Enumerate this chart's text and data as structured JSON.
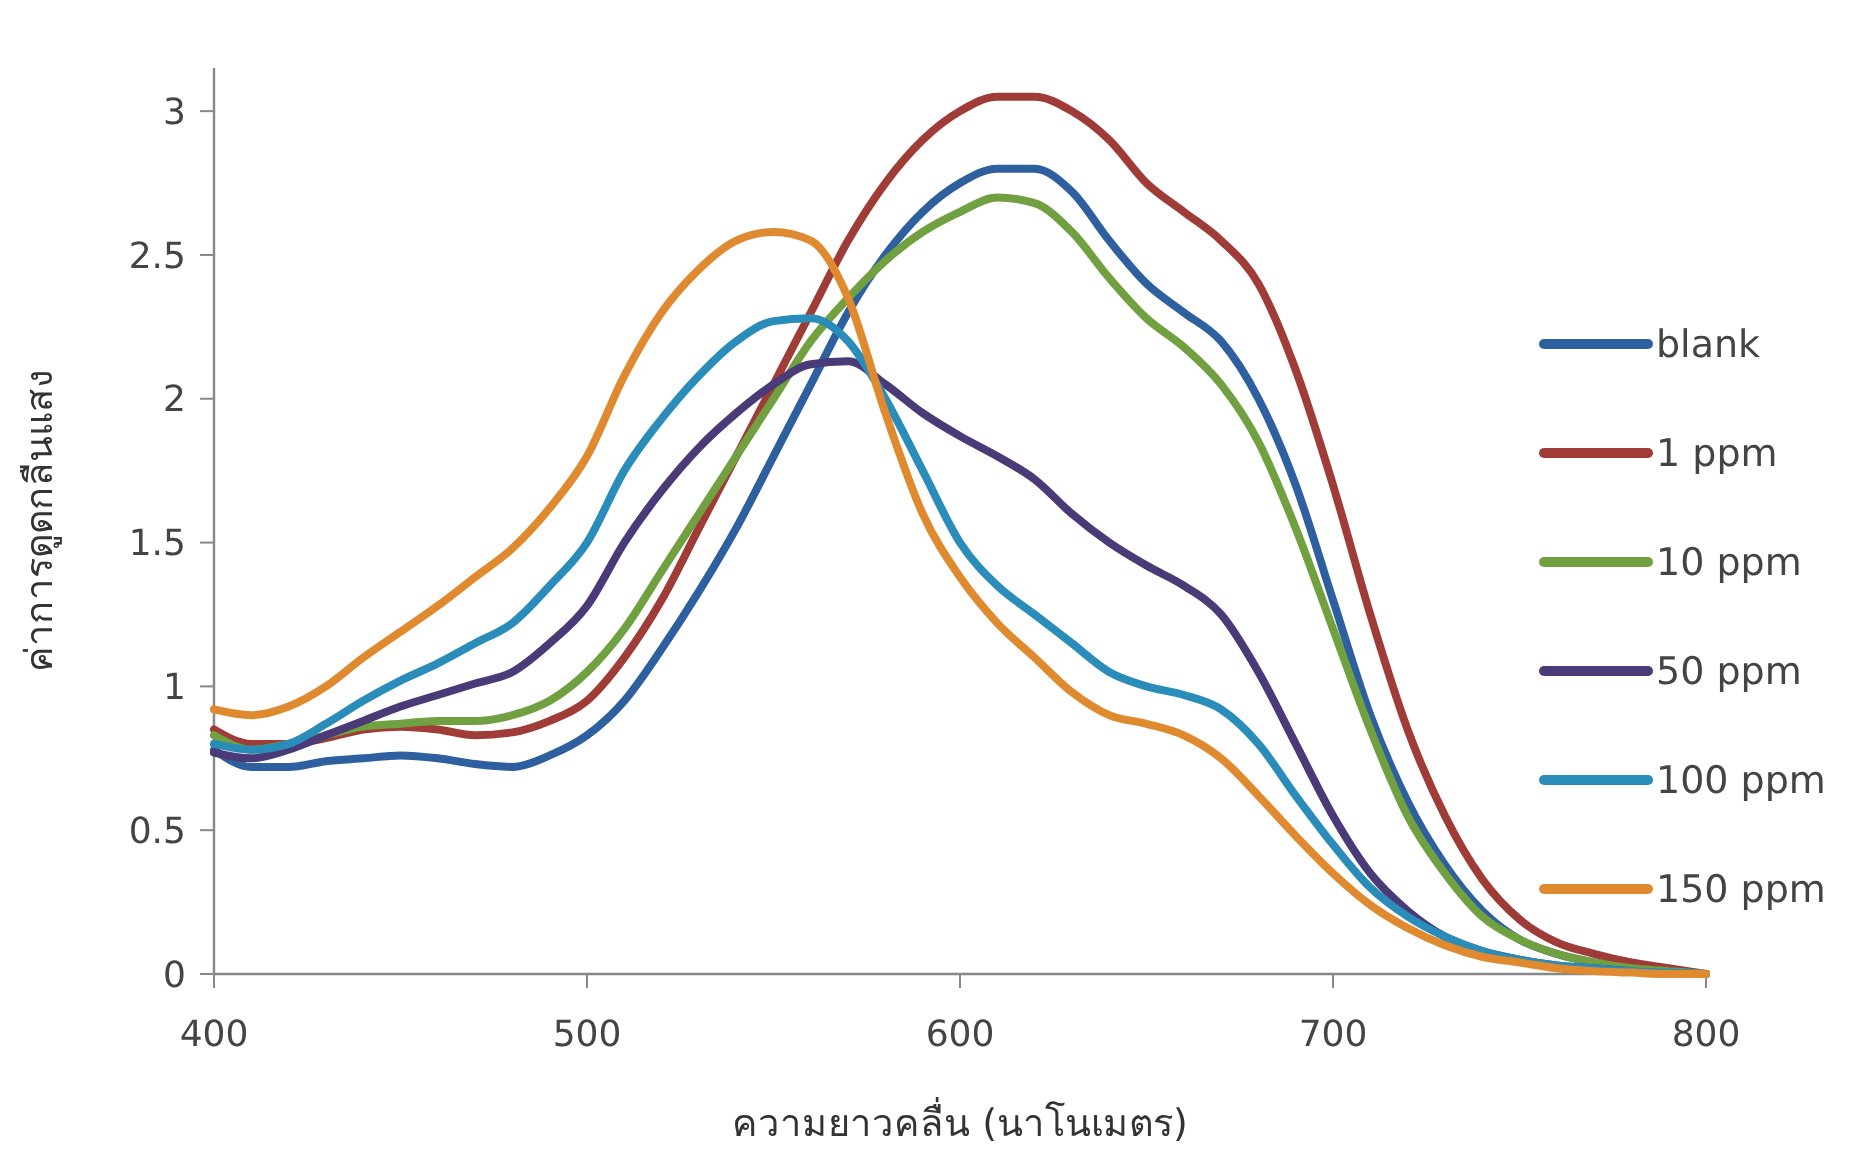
{
  "chart_data": {
    "type": "line",
    "xlabel": "ความยาวคลื่น (นาโนเมตร)",
    "ylabel": "ค่าการดูดกลืนแสง",
    "x": [
      400,
      410,
      420,
      430,
      440,
      450,
      460,
      470,
      480,
      490,
      500,
      510,
      520,
      530,
      540,
      550,
      560,
      570,
      580,
      590,
      600,
      610,
      620,
      630,
      640,
      650,
      660,
      670,
      680,
      690,
      700,
      710,
      720,
      730,
      740,
      750,
      760,
      770,
      780,
      790,
      800
    ],
    "series": [
      {
        "name": "blank",
        "color": "#2e5f9e",
        "values": [
          0.78,
          0.72,
          0.72,
          0.74,
          0.75,
          0.76,
          0.75,
          0.73,
          0.72,
          0.76,
          0.83,
          0.95,
          1.13,
          1.33,
          1.55,
          1.8,
          2.05,
          2.3,
          2.5,
          2.65,
          2.75,
          2.8,
          2.8,
          2.72,
          2.55,
          2.4,
          2.3,
          2.2,
          2.0,
          1.7,
          1.3,
          0.9,
          0.6,
          0.38,
          0.22,
          0.12,
          0.07,
          0.04,
          0.02,
          0.01,
          0
        ]
      },
      {
        "name": "1 ppm",
        "color": "#a03c37",
        "values": [
          0.85,
          0.8,
          0.8,
          0.82,
          0.85,
          0.86,
          0.85,
          0.83,
          0.84,
          0.88,
          0.95,
          1.1,
          1.3,
          1.55,
          1.8,
          2.05,
          2.3,
          2.55,
          2.75,
          2.9,
          3.0,
          3.05,
          3.05,
          3.0,
          2.9,
          2.75,
          2.65,
          2.55,
          2.4,
          2.1,
          1.7,
          1.25,
          0.85,
          0.55,
          0.33,
          0.19,
          0.11,
          0.07,
          0.04,
          0.02,
          0
        ]
      },
      {
        "name": "10 ppm",
        "color": "#70a040",
        "values": [
          0.83,
          0.78,
          0.8,
          0.83,
          0.86,
          0.87,
          0.88,
          0.88,
          0.9,
          0.95,
          1.05,
          1.2,
          1.4,
          1.6,
          1.8,
          2.0,
          2.2,
          2.35,
          2.48,
          2.58,
          2.65,
          2.7,
          2.68,
          2.58,
          2.42,
          2.28,
          2.18,
          2.05,
          1.85,
          1.55,
          1.2,
          0.85,
          0.55,
          0.35,
          0.2,
          0.12,
          0.07,
          0.04,
          0.02,
          0.01,
          0
        ]
      },
      {
        "name": "50 ppm",
        "color": "#4a3b78",
        "values": [
          0.77,
          0.75,
          0.78,
          0.83,
          0.88,
          0.93,
          0.97,
          1.01,
          1.05,
          1.15,
          1.28,
          1.5,
          1.68,
          1.83,
          1.95,
          2.05,
          2.12,
          2.13,
          2.05,
          1.95,
          1.87,
          1.8,
          1.72,
          1.6,
          1.5,
          1.42,
          1.35,
          1.25,
          1.05,
          0.8,
          0.55,
          0.35,
          0.22,
          0.13,
          0.08,
          0.05,
          0.03,
          0.02,
          0.01,
          null,
          null
        ]
      },
      {
        "name": "100 ppm",
        "color": "#2a8cb8",
        "values": [
          0.8,
          0.78,
          0.8,
          0.87,
          0.95,
          1.02,
          1.08,
          1.15,
          1.22,
          1.35,
          1.5,
          1.75,
          1.93,
          2.08,
          2.2,
          2.27,
          2.28,
          2.2,
          2.0,
          1.75,
          1.5,
          1.35,
          1.25,
          1.15,
          1.05,
          1.0,
          0.97,
          0.92,
          0.8,
          0.62,
          0.45,
          0.3,
          0.2,
          0.13,
          0.08,
          0.05,
          0.03,
          0.02,
          0.01,
          0.005,
          0
        ]
      },
      {
        "name": "150 ppm",
        "color": "#e08a30",
        "values": [
          0.92,
          0.9,
          0.93,
          1.0,
          1.1,
          1.19,
          1.28,
          1.38,
          1.48,
          1.62,
          1.8,
          2.08,
          2.3,
          2.45,
          2.55,
          2.58,
          2.55,
          2.35,
          1.95,
          1.6,
          1.38,
          1.22,
          1.1,
          0.98,
          0.9,
          0.87,
          0.83,
          0.75,
          0.62,
          0.48,
          0.35,
          0.24,
          0.16,
          0.1,
          0.06,
          0.04,
          0.02,
          0.01,
          0.005,
          0,
          0
        ]
      }
    ],
    "xlim": [
      400,
      800
    ],
    "xticks": [
      400,
      500,
      600,
      700,
      800
    ],
    "ylim": [
      0,
      3.15
    ],
    "yticks": [
      0,
      0.5,
      1,
      1.5,
      2,
      2.5,
      3
    ],
    "legend": "right",
    "line_style": "solid"
  }
}
